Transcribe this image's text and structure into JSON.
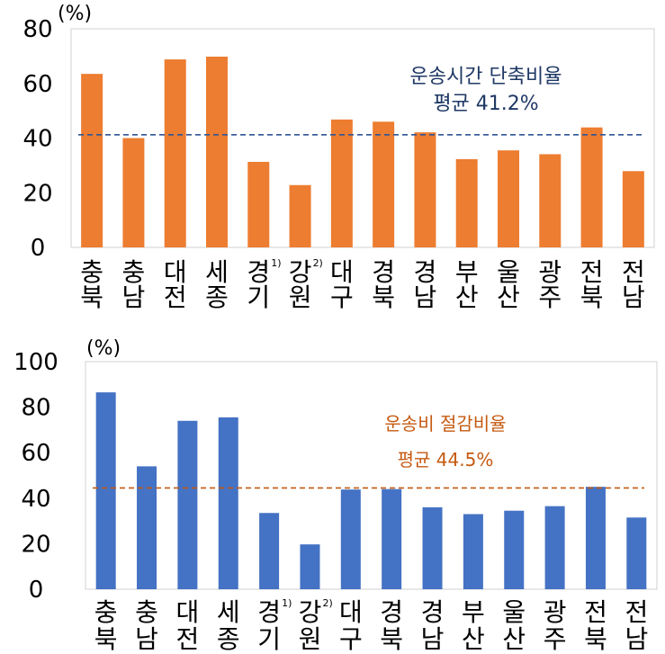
{
  "chart_data": [
    {
      "type": "bar",
      "unit_label": "(%)",
      "categories": [
        {
          "top": "충",
          "bottom": "북",
          "sup": ""
        },
        {
          "top": "충",
          "bottom": "남",
          "sup": ""
        },
        {
          "top": "대",
          "bottom": "전",
          "sup": ""
        },
        {
          "top": "세",
          "bottom": "종",
          "sup": ""
        },
        {
          "top": "경",
          "bottom": "기",
          "sup": "1)"
        },
        {
          "top": "강",
          "bottom": "원",
          "sup": "2)"
        },
        {
          "top": "대",
          "bottom": "구",
          "sup": ""
        },
        {
          "top": "경",
          "bottom": "북",
          "sup": ""
        },
        {
          "top": "경",
          "bottom": "남",
          "sup": ""
        },
        {
          "top": "부",
          "bottom": "산",
          "sup": ""
        },
        {
          "top": "울",
          "bottom": "산",
          "sup": ""
        },
        {
          "top": "광",
          "bottom": "주",
          "sup": ""
        },
        {
          "top": "전",
          "bottom": "북",
          "sup": ""
        },
        {
          "top": "전",
          "bottom": "남",
          "sup": ""
        }
      ],
      "values": [
        63.5,
        40.0,
        68.8,
        69.8,
        31.3,
        22.8,
        46.8,
        46.0,
        42.1,
        32.3,
        35.5,
        34.1,
        43.9,
        27.9
      ],
      "yticks": [
        0,
        20,
        40,
        60,
        80
      ],
      "ylim": [
        0,
        80
      ],
      "average": 41.2,
      "annotation": [
        "운송시간 단축비율",
        "평균 41.2%"
      ],
      "colors": {
        "bar": "#ED7D31",
        "avg_line": "#2F5597",
        "annotation": "#1F3864"
      }
    },
    {
      "type": "bar",
      "unit_label": "(%)",
      "categories": [
        {
          "top": "충",
          "bottom": "북",
          "sup": ""
        },
        {
          "top": "충",
          "bottom": "남",
          "sup": ""
        },
        {
          "top": "대",
          "bottom": "전",
          "sup": ""
        },
        {
          "top": "세",
          "bottom": "종",
          "sup": ""
        },
        {
          "top": "경",
          "bottom": "기",
          "sup": "1)"
        },
        {
          "top": "강",
          "bottom": "원",
          "sup": "2)"
        },
        {
          "top": "대",
          "bottom": "구",
          "sup": ""
        },
        {
          "top": "경",
          "bottom": "북",
          "sup": ""
        },
        {
          "top": "경",
          "bottom": "남",
          "sup": ""
        },
        {
          "top": "부",
          "bottom": "산",
          "sup": ""
        },
        {
          "top": "울",
          "bottom": "산",
          "sup": ""
        },
        {
          "top": "광",
          "bottom": "주",
          "sup": ""
        },
        {
          "top": "전",
          "bottom": "북",
          "sup": ""
        },
        {
          "top": "전",
          "bottom": "남",
          "sup": ""
        }
      ],
      "values": [
        86.5,
        54.0,
        74.0,
        75.5,
        33.5,
        19.7,
        43.8,
        44.0,
        36.0,
        33.0,
        34.5,
        36.5,
        45.0,
        31.5
      ],
      "yticks": [
        0,
        20,
        40,
        60,
        80,
        100
      ],
      "ylim": [
        0,
        100
      ],
      "average": 44.5,
      "annotation": [
        "운송비 절감비율",
        "평균 44.5%"
      ],
      "colors": {
        "bar": "#4472C4",
        "avg_line": "#C55A11",
        "annotation": "#C55A11"
      }
    }
  ]
}
